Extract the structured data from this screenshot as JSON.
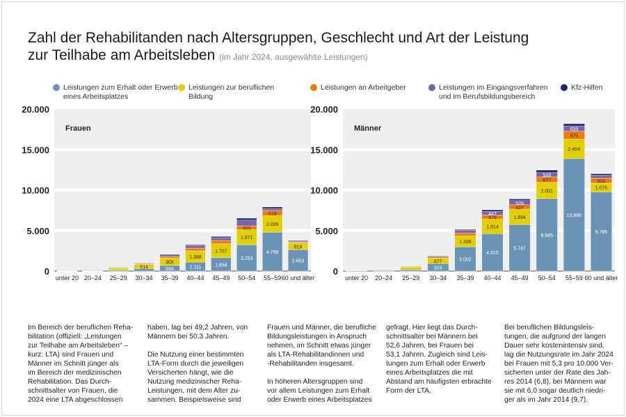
{
  "title": "Zahl der Rehabilitanden nach Altersgruppen, Geschlecht und Art der Leistung zur Teilhabe am Arbeitsleben",
  "title_line1": "Zahl der Rehabilitanden nach Altersgruppen, Geschlecht und Art der Leistung",
  "title_line2": "zur Teilhabe am Arbeitsleben",
  "subtitle": "(im Jahr 2024, ausgewählte Leistungen)",
  "legend": [
    {
      "label": "Leistungen zum Erhalt oder Erwerb\neines Arbeitsplatzes",
      "color": "#6b93b6"
    },
    {
      "label": "Leistungen zur beruflichen\nBildung",
      "color": "#e3cf00"
    },
    {
      "label": "Leistungen an Arbeitgeber",
      "color": "#ec7b0c"
    },
    {
      "label": "Leistungen im Eingangsverfahren\nund im Berufsbildungsbereich",
      "color": "#7a63a8"
    },
    {
      "label": "Kfz-Hilfen",
      "color": "#1b2a6b"
    }
  ],
  "chart_data": [
    {
      "type": "bar",
      "stacked": true,
      "title": "Frauen",
      "categories": [
        "unter 20",
        "20–24",
        "25–29",
        "30–34",
        "35–39",
        "40–44",
        "45–49",
        "50–54",
        "55–59",
        "60 und älter"
      ],
      "yticks": [
        "0",
        "5.000",
        "10.000",
        "15.000",
        "20.000"
      ],
      "ylim": [
        0,
        20000
      ],
      "grid": true,
      "series": [
        {
          "name": "Leistungen zum Erhalt oder Erwerb eines Arbeitsplatzes",
          "values": [
            10,
            30,
            100,
            300,
            694,
            1111,
            1658,
            3253,
            4799,
            2653
          ],
          "labels": [
            null,
            null,
            null,
            null,
            "694",
            "1.111",
            "1.658",
            "3.253",
            "4.799",
            "2.653"
          ]
        },
        {
          "name": "Leistungen zur beruflichen Bildung",
          "values": [
            20,
            80,
            300,
            514,
            905,
            1388,
            1707,
            1871,
            2039,
            819
          ],
          "labels": [
            null,
            null,
            null,
            "514",
            "905",
            "1.388",
            "1.707",
            "1.871",
            "2.039",
            "819"
          ]
        },
        {
          "name": "Leistungen an Arbeitgeber",
          "values": [
            0,
            10,
            30,
            60,
            200,
            330,
            400,
            455,
            618,
            100
          ],
          "labels": [
            null,
            null,
            null,
            null,
            null,
            null,
            null,
            "455",
            "618",
            null
          ]
        },
        {
          "name": "Leistungen im Eingangsverfahren und im Berufsbildungsbereich",
          "values": [
            0,
            20,
            40,
            80,
            200,
            300,
            350,
            700,
            250,
            120
          ],
          "labels": [
            null,
            null,
            null,
            null,
            null,
            null,
            null,
            null,
            null,
            null
          ]
        },
        {
          "name": "Kfz-Hilfen",
          "values": [
            0,
            10,
            20,
            40,
            80,
            120,
            150,
            250,
            200,
            80
          ],
          "labels": [
            null,
            null,
            null,
            null,
            null,
            null,
            null,
            null,
            null,
            null
          ]
        }
      ]
    },
    {
      "type": "bar",
      "stacked": true,
      "title": "Männer",
      "categories": [
        "unter 20",
        "20–24",
        "25–29",
        "30–34",
        "35–39",
        "40–44",
        "45–49",
        "50–54",
        "55–59",
        "60 und älter"
      ],
      "yticks": [
        "0",
        "5.000",
        "10.000",
        "15.000",
        "20.000"
      ],
      "ylim": [
        0,
        20000
      ],
      "grid": true,
      "series": [
        {
          "name": "Leistungen zum Erhalt oder Erwerb eines Arbeitsplatzes",
          "values": [
            60,
            80,
            150,
            924,
            3002,
            4615,
            5747,
            8945,
            13886,
            9785
          ],
          "labels": [
            null,
            null,
            null,
            "924",
            "3.002",
            "4.615",
            "5.747",
            "8.945",
            "13.886",
            "9.785"
          ]
        },
        {
          "name": "Leistungen zur beruflichen Bildung",
          "values": [
            10,
            80,
            350,
            677,
            1338,
            1814,
            1894,
            2001,
            2404,
            1075
          ],
          "labels": [
            null,
            null,
            null,
            "677",
            "1.338",
            "1.814",
            "1.894",
            "2.001",
            "2.404",
            "1.075"
          ]
        },
        {
          "name": "Leistungen an Arbeitgeber",
          "values": [
            0,
            20,
            40,
            130,
            350,
            478,
            527,
            677,
            975,
            603
          ],
          "labels": [
            null,
            null,
            null,
            null,
            null,
            "478",
            "527",
            "677",
            "975",
            "603"
          ]
        },
        {
          "name": "Leistungen im Eingangsverfahren und im Berufsbildungsbereich",
          "values": [
            0,
            20,
            40,
            120,
            350,
            447,
            526,
            549,
            633,
            350
          ],
          "labels": [
            null,
            null,
            null,
            null,
            null,
            "447",
            "526",
            "549",
            "633",
            null
          ]
        },
        {
          "name": "Kfz-Hilfen",
          "values": [
            0,
            0,
            20,
            50,
            100,
            200,
            200,
            300,
            300,
            200
          ],
          "labels": [
            null,
            null,
            null,
            null,
            null,
            null,
            null,
            null,
            null,
            null
          ]
        }
      ]
    }
  ],
  "text_columns": [
    "Im Bereich der beruflichen Reha-\nbilitation (offiziell: „Leistungen\nzur Teilhabe am Arbeitsleben“ –\nkurz: LTA) sind Frauen und\nMänner im Schnitt jünger als\nim Bereich der medizinischen\nRehabilitation. Das Durch-\nschnittsalter von Frauen, die\n2024 eine LTA abgeschlossen",
    "haben, lag bei 49,2 Jahren, von\nMännern bei 50,3 Jahren.\n\nDie Nutzung einer bestimmten\nLTA-Form durch die jeweiligen\nVersicherten hängt, wie die\nNutzung medizinischer Reha-\nLeistungen, mit dem Alter zu-\nsammen. Beispielsweise sind",
    "Frauen und Männer, die berufliche\nBildungsleistungen in Anspruch\nnehmen, im Schnitt etwas jünger\nals LTA-Rehabilitandinnen und\n-Rehabilitanden insgesamt.\n\nIn höheren Altersgruppen sind\nvor allem Leistungen zum Erhalt\noder Erwerb eines Arbeitsplatzes",
    "gefragt. Hier liegt das Durch-\nschnittsalter bei Männern bei\n52,6 Jahren, bei Frauen bei\n53,1 Jahren. Zugleich sind Leis-\ntungen zum Erhalt oder Erwerb\neines Arbeitsplatzes die mit\nAbstand am häufigsten erbrachte\nForm der LTA.",
    "Bei beruflichen Bildungsleis-\ntungen, die aufgrund der langen\nDauer sehr kostenintensiv sind,\nlag die Nutzungsrate im Jahr 2024\nbei Frauen mit 5,3 pro 10.000 Ver-\nsicherten unter der Rate des Jah-\nres 2014 (6,8), bei Männern war\nsie mit 6,0 sogar deutlich niedri-\nger als im Jahr 2014 (9,7)."
  ]
}
